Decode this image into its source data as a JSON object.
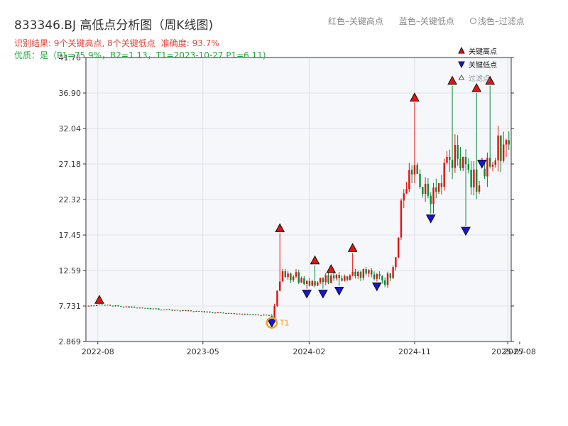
{
  "title": "833346.BJ 高低点分析图（周K线图)",
  "header_legend": {
    "red": "红色–关键高点",
    "blue": "蓝色–关键低点",
    "light": "浅色–过滤点"
  },
  "result": {
    "summary": "识别结果: 9个关键高点, 8个关键低点",
    "accuracy": "准确度: 93.7%"
  },
  "quality": "优质：是（P1=75.9%，B2=1.13，T1=2023-10-27 P1=6.11)",
  "colors": {
    "up": "#e8120c",
    "down": "#0a8a3a",
    "key_high": "#e8120c",
    "key_low": "#1414e0",
    "t1_ring": "#f0a02a",
    "plot_bg": "#f5f7fa",
    "grid": "#dde2ea"
  },
  "chart_data": {
    "type": "candlestick",
    "series_label": "周K线",
    "x_start": "2022-07-08",
    "x_end": "2025-07-04",
    "xlim": [
      "2022-07-01",
      "2025-07-10"
    ],
    "ylim": [
      2.869,
      41.76
    ],
    "y_ticks": [
      "41.76",
      "36.90",
      "32.04",
      "27.18",
      "22.32",
      "17.45",
      "12.59",
      "7.731",
      "2.869"
    ],
    "x_ticks": [
      {
        "date": "2022-08-01",
        "label": "2022-08"
      },
      {
        "date": "2023-05-01",
        "label": "2023-05"
      },
      {
        "date": "2024-02-01",
        "label": "2024-02"
      },
      {
        "date": "2024-11-01",
        "label": "2024-11"
      },
      {
        "date": "2025-07-01",
        "label": "2025-07"
      },
      {
        "date": "2025-08-01",
        "label": "2025-08"
      }
    ],
    "anchors": [
      [
        "2022-07-08",
        7.7
      ],
      [
        "2022-08-05",
        7.9
      ],
      [
        "2023-01-01",
        7.3
      ],
      [
        "2023-10-27",
        6.4
      ],
      [
        "2023-11-10",
        9.5
      ],
      [
        "2023-11-24",
        12.5
      ],
      [
        "2024-01-26",
        10.8
      ],
      [
        "2024-04-19",
        11.6
      ],
      [
        "2024-06-07",
        12.3
      ],
      [
        "2024-08-16",
        11.5
      ],
      [
        "2024-09-13",
        14.0
      ],
      [
        "2024-10-04",
        24.0
      ],
      [
        "2024-10-25",
        28.0
      ],
      [
        "2024-12-06",
        22.0
      ],
      [
        "2025-01-10",
        25.0
      ],
      [
        "2025-02-14",
        28.0
      ],
      [
        "2025-03-07",
        27.0
      ],
      [
        "2025-04-04",
        25.0
      ],
      [
        "2025-05-23",
        28.5
      ],
      [
        "2025-07-04",
        29.2
      ]
    ],
    "key_highs": [
      {
        "date": "2022-08-05",
        "value": 7.9
      },
      {
        "date": "2023-11-17",
        "value": 17.7
      },
      {
        "date": "2024-02-16",
        "value": 13.3
      },
      {
        "date": "2024-03-29",
        "value": 12.1
      },
      {
        "date": "2024-05-24",
        "value": 15.0
      },
      {
        "date": "2024-11-01",
        "value": 35.6
      },
      {
        "date": "2025-02-07",
        "value": 37.9
      },
      {
        "date": "2025-04-11",
        "value": 36.9
      },
      {
        "date": "2025-05-16",
        "value": 37.9
      }
    ],
    "key_lows": [
      {
        "date": "2023-10-27",
        "value": 6.11
      },
      {
        "date": "2024-01-26",
        "value": 10.1
      },
      {
        "date": "2024-03-08",
        "value": 10.1
      },
      {
        "date": "2024-04-19",
        "value": 10.5
      },
      {
        "date": "2024-07-26",
        "value": 11.1
      },
      {
        "date": "2024-12-13",
        "value": 20.4
      },
      {
        "date": "2025-03-14",
        "value": 18.7
      },
      {
        "date": "2025-04-25",
        "value": 27.9
      }
    ],
    "t1": {
      "date": "2023-10-27",
      "value": 6.11,
      "label": "T1"
    },
    "legend": {
      "position": "top-right",
      "items": [
        {
          "label": "关键高点",
          "marker": "up-triangle",
          "color": "#e8120c"
        },
        {
          "label": "关键低点",
          "marker": "down-triangle",
          "color": "#1414e0"
        },
        {
          "label": "过滤点",
          "marker": "hollow-triangle",
          "color": "#999999"
        }
      ]
    },
    "grid": true
  }
}
